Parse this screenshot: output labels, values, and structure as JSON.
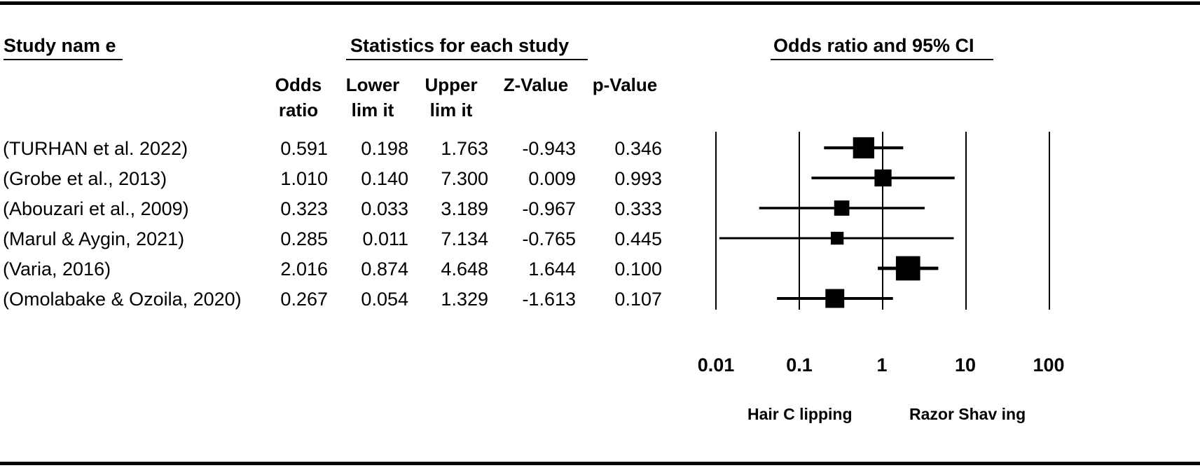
{
  "headers": {
    "study_name": "Study  nam e",
    "statistics": "Statistics for each study",
    "plot": "Odds ratio and 95%  CI"
  },
  "columns": [
    {
      "line1": "Odds",
      "line2": "ratio"
    },
    {
      "line1": "Lower",
      "line2": "lim it"
    },
    {
      "line1": "Upper",
      "line2": "lim it"
    },
    {
      "line1": "",
      "line2": "Z-Value"
    },
    {
      "line1": "",
      "line2": "p-Value"
    }
  ],
  "favors": {
    "left": "Hair C lipping",
    "right": "Razor Shav ing"
  },
  "chart_data": {
    "type": "forest",
    "x_scale": "log",
    "xlim": [
      0.01,
      100
    ],
    "ticks": [
      "0.01",
      "0.1",
      "1",
      "10",
      "100"
    ],
    "tick_values": [
      0.01,
      0.1,
      1,
      10,
      100
    ],
    "studies": [
      {
        "name": "(TURHAN et al. 2022)",
        "or": 0.591,
        "lower": 0.198,
        "upper": 1.763,
        "z": -0.943,
        "p": 0.346,
        "weight": 0.78
      },
      {
        "name": "(Grobe et al., 2013)",
        "or": 1.01,
        "lower": 0.14,
        "upper": 7.3,
        "z": 0.009,
        "p": 0.993,
        "weight": 0.55
      },
      {
        "name": "(Abouzari et al., 2009)",
        "or": 0.323,
        "lower": 0.033,
        "upper": 3.189,
        "z": -0.967,
        "p": 0.333,
        "weight": 0.45
      },
      {
        "name": "(Marul & Aygin, 2021)",
        "or": 0.285,
        "lower": 0.011,
        "upper": 7.134,
        "z": -0.765,
        "p": 0.445,
        "weight": 0.32
      },
      {
        "name": "(Varia, 2016)",
        "or": 2.016,
        "lower": 0.874,
        "upper": 4.648,
        "z": 1.644,
        "p": 0.1,
        "weight": 0.95
      },
      {
        "name": "(Omolabake & Ozoila, 2020)",
        "or": 0.267,
        "lower": 0.054,
        "upper": 1.329,
        "z": -1.613,
        "p": 0.107,
        "weight": 0.65
      }
    ],
    "display": {
      "or": [
        "0.591",
        "1.010",
        "0.323",
        "0.285",
        "2.016",
        "0.267"
      ],
      "lower": [
        "0.198",
        "0.140",
        "0.033",
        "0.011",
        "0.874",
        "0.054"
      ],
      "upper": [
        "1.763",
        "7.300",
        "3.189",
        "7.134",
        "4.648",
        "1.329"
      ],
      "z": [
        "-0.943",
        "0.009",
        "-0.967",
        "-0.765",
        "1.644",
        "-1.613"
      ],
      "p": [
        "0.346",
        "0.993",
        "0.333",
        "0.445",
        "0.100",
        "0.107"
      ]
    }
  }
}
